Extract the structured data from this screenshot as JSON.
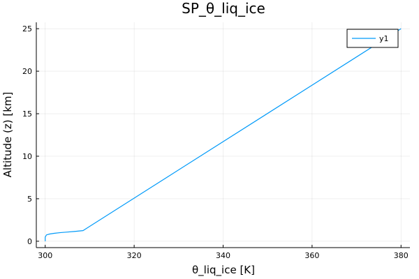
{
  "chart_data": {
    "type": "line",
    "title": "SP_θ_liq_ice",
    "xlabel": "θ_liq_ice [K]",
    "ylabel": "Altitude (z) [km]",
    "xlim": [
      298,
      382
    ],
    "ylim": [
      -0.75,
      25.75
    ],
    "xticks": [
      300,
      320,
      340,
      360,
      380
    ],
    "yticks": [
      0,
      5,
      10,
      15,
      20,
      25
    ],
    "grid": true,
    "legend": "top-right",
    "series": [
      {
        "name": "y1",
        "color": "#009af9",
        "x": [
          300,
          300,
          300.3,
          301,
          302,
          303.5,
          305,
          306.5,
          308.5,
          380
        ],
        "y": [
          0,
          0.5,
          0.75,
          0.85,
          0.93,
          1.02,
          1.08,
          1.15,
          1.25,
          25
        ]
      }
    ]
  }
}
